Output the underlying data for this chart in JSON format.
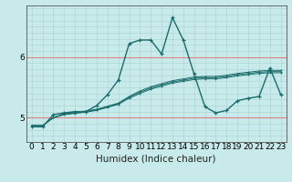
{
  "xlabel": "Humidex (Indice chaleur)",
  "bg_color": "#c8eaea",
  "line_color": "#1a6b6b",
  "x": [
    0,
    1,
    2,
    3,
    4,
    5,
    6,
    7,
    8,
    9,
    10,
    11,
    12,
    13,
    14,
    15,
    16,
    17,
    18,
    19,
    20,
    21,
    22,
    23
  ],
  "line1": [
    4.85,
    4.85,
    5.05,
    5.08,
    5.1,
    5.1,
    5.2,
    5.38,
    5.62,
    6.22,
    6.28,
    6.28,
    6.05,
    6.65,
    6.28,
    5.72,
    5.18,
    5.08,
    5.12,
    5.28,
    5.32,
    5.35,
    5.82,
    5.38
  ],
  "line2": [
    4.87,
    4.87,
    5.0,
    5.05,
    5.07,
    5.09,
    5.12,
    5.17,
    5.22,
    5.32,
    5.4,
    5.47,
    5.52,
    5.57,
    5.6,
    5.63,
    5.64,
    5.64,
    5.66,
    5.69,
    5.71,
    5.73,
    5.74,
    5.74
  ],
  "line3": [
    4.87,
    4.87,
    5.0,
    5.06,
    5.08,
    5.1,
    5.13,
    5.18,
    5.23,
    5.34,
    5.42,
    5.49,
    5.54,
    5.59,
    5.62,
    5.65,
    5.66,
    5.66,
    5.68,
    5.71,
    5.73,
    5.75,
    5.76,
    5.76
  ],
  "line4": [
    4.87,
    4.87,
    5.0,
    5.07,
    5.09,
    5.11,
    5.14,
    5.19,
    5.24,
    5.35,
    5.44,
    5.51,
    5.56,
    5.61,
    5.64,
    5.67,
    5.68,
    5.68,
    5.7,
    5.73,
    5.75,
    5.77,
    5.78,
    5.78
  ],
  "ylim": [
    4.6,
    6.85
  ],
  "xlim": [
    -0.5,
    23.5
  ],
  "yticks": [
    5,
    6
  ],
  "xticks": [
    0,
    1,
    2,
    3,
    4,
    5,
    6,
    7,
    8,
    9,
    10,
    11,
    12,
    13,
    14,
    15,
    16,
    17,
    18,
    19,
    20,
    21,
    22,
    23
  ],
  "label_fontsize": 7.5,
  "tick_fontsize": 6.5,
  "red_grid_color": "#e08080",
  "minor_grid_color": "#a8d4d4"
}
